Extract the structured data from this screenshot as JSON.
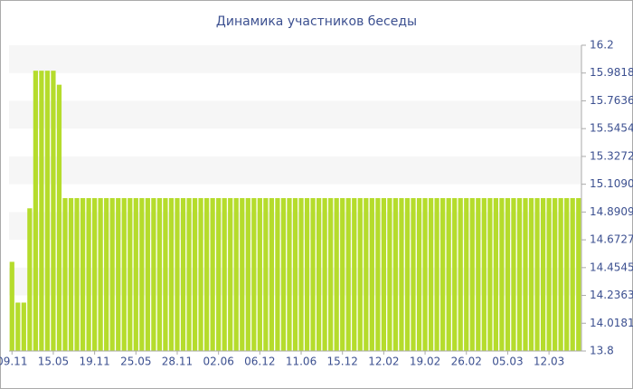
{
  "chart_data": {
    "type": "bar",
    "title": "Динамика участников беседы",
    "categories": [
      "09.11",
      null,
      null,
      null,
      null,
      null,
      null,
      "15.05",
      null,
      null,
      null,
      null,
      null,
      null,
      "19.11",
      null,
      null,
      null,
      null,
      null,
      null,
      "25.05",
      null,
      null,
      null,
      null,
      null,
      null,
      "28.11",
      null,
      null,
      null,
      null,
      null,
      null,
      "02.06",
      null,
      null,
      null,
      null,
      null,
      null,
      "06.12",
      null,
      null,
      null,
      null,
      null,
      null,
      "11.06",
      null,
      null,
      null,
      null,
      null,
      null,
      "15.12",
      null,
      null,
      null,
      null,
      null,
      null,
      "12.02",
      null,
      null,
      null,
      null,
      null,
      null,
      "19.02",
      null,
      null,
      null,
      null,
      null,
      null,
      "26.02",
      null,
      null,
      null,
      null,
      null,
      null,
      "05.03",
      null,
      null,
      null,
      null,
      null,
      null,
      "12.03",
      null,
      null,
      null,
      null,
      null
    ],
    "values": [
      14.5,
      14.18,
      14.18,
      14.92,
      16,
      16,
      16,
      16,
      15.89,
      15,
      15,
      15,
      15,
      15,
      15,
      15,
      15,
      15,
      15,
      15,
      15,
      15,
      15,
      15,
      15,
      15,
      15,
      15,
      15,
      15,
      15,
      15,
      15,
      15,
      15,
      15,
      15,
      15,
      15,
      15,
      15,
      15,
      15,
      15,
      15,
      15,
      15,
      15,
      15,
      15,
      15,
      15,
      15,
      15,
      15,
      15,
      15,
      15,
      15,
      15,
      15,
      15,
      15,
      15,
      15,
      15,
      15,
      15,
      15,
      15,
      15,
      15,
      15,
      15,
      15,
      15,
      15,
      15,
      15,
      15,
      15,
      15,
      15,
      15,
      15,
      15,
      15,
      15,
      15,
      15,
      15,
      15,
      15,
      15,
      15,
      15,
      15
    ],
    "color": "#b5dc2c",
    "ylim": [
      13.8,
      16.2
    ],
    "yticks": [
      13.8,
      14.0181,
      14.2363,
      14.4545,
      14.6727,
      14.8909,
      {
        "value": 15.109,
        "label": "15.1090"
      },
      15.3272,
      15.5454,
      15.7636,
      15.9818,
      16.2
    ]
  }
}
